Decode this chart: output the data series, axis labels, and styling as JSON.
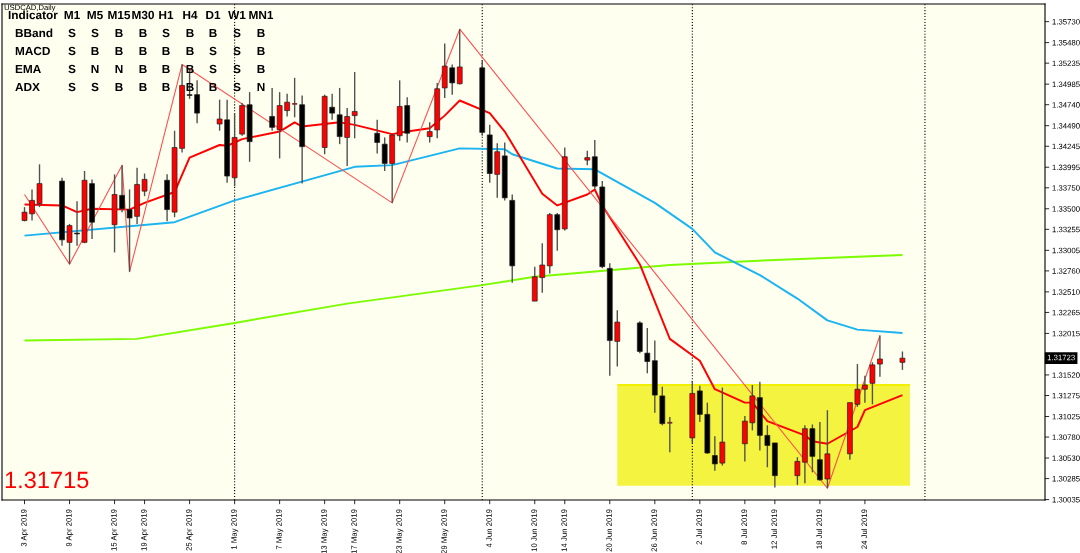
{
  "chart_data": {
    "type": "candlestick",
    "title": "USDCAD,Daily",
    "x": [
      "2019-04-03",
      "2019-04-04",
      "2019-04-05",
      "2019-04-08",
      "2019-04-09",
      "2019-04-10",
      "2019-04-11",
      "2019-04-12",
      "2019-04-15",
      "2019-04-16",
      "2019-04-17",
      "2019-04-18",
      "2019-04-19",
      "2019-04-22",
      "2019-04-23",
      "2019-04-24",
      "2019-04-25",
      "2019-04-26",
      "2019-04-29",
      "2019-04-30",
      "2019-05-01",
      "2019-05-02",
      "2019-05-03",
      "2019-05-06",
      "2019-05-07",
      "2019-05-08",
      "2019-05-09",
      "2019-05-10",
      "2019-05-13",
      "2019-05-14",
      "2019-05-15",
      "2019-05-16",
      "2019-05-17",
      "2019-05-20",
      "2019-05-21",
      "2019-05-22",
      "2019-05-23",
      "2019-05-24",
      "2019-05-27",
      "2019-05-28",
      "2019-05-29",
      "2019-05-30",
      "2019-05-31",
      "2019-06-03",
      "2019-06-04",
      "2019-06-05",
      "2019-06-06",
      "2019-06-07",
      "2019-06-10",
      "2019-06-11",
      "2019-06-12",
      "2019-06-13",
      "2019-06-14",
      "2019-06-17",
      "2019-06-18",
      "2019-06-19",
      "2019-06-20",
      "2019-06-21",
      "2019-06-24",
      "2019-06-25",
      "2019-06-26",
      "2019-06-27",
      "2019-06-28",
      "2019-07-01",
      "2019-07-02",
      "2019-07-03",
      "2019-07-04",
      "2019-07-05",
      "2019-07-08",
      "2019-07-09",
      "2019-07-10",
      "2019-07-11",
      "2019-07-12",
      "2019-07-15",
      "2019-07-16",
      "2019-07-17",
      "2019-07-18",
      "2019-07-19",
      "2019-07-22",
      "2019-07-23",
      "2019-07-24",
      "2019-07-25",
      "2019-07-26",
      "2019-07-29"
    ],
    "ohlc": [
      [
        1.3336,
        1.3352,
        1.3335,
        1.3346
      ],
      [
        1.3344,
        1.3373,
        1.3336,
        1.336
      ],
      [
        1.3356,
        1.3403,
        1.3352,
        1.338
      ],
      [
        1.3383,
        1.3387,
        1.3306,
        1.3313
      ],
      [
        1.331,
        1.3332,
        1.3284,
        1.333
      ],
      [
        1.3321,
        1.3359,
        1.3306,
        1.332
      ],
      [
        1.331,
        1.3395,
        1.3309,
        1.3384
      ],
      [
        1.338,
        1.3385,
        1.3314,
        1.3334
      ],
      [
        1.3331,
        1.3391,
        1.3298,
        1.3367
      ],
      [
        1.3366,
        1.3402,
        1.3346,
        1.335
      ],
      [
        1.3349,
        1.3373,
        1.3275,
        1.3339
      ],
      [
        1.3341,
        1.3399,
        1.3332,
        1.3379
      ],
      [
        1.3371,
        1.3392,
        1.3365,
        1.3385
      ],
      [
        1.3384,
        1.3391,
        1.3335,
        1.3349
      ],
      [
        1.3346,
        1.3443,
        1.334,
        1.3423
      ],
      [
        1.3422,
        1.3522,
        1.3417,
        1.3497
      ],
      [
        1.3486,
        1.3517,
        1.3481,
        1.3485
      ],
      [
        1.3486,
        1.3503,
        1.3452,
        1.3464
      ],
      [
        1.3451,
        1.348,
        1.3443,
        1.3457
      ],
      [
        1.3456,
        1.348,
        1.3381,
        1.3389
      ],
      [
        1.3387,
        1.3464,
        1.3377,
        1.3435
      ],
      [
        1.3439,
        1.3476,
        1.3437,
        1.3473
      ],
      [
        1.3474,
        1.3489,
        1.3406,
        1.343
      ],
      [
        1.346,
        1.3494,
        1.3443,
        1.3447
      ],
      [
        1.3444,
        1.3489,
        1.341,
        1.3473
      ],
      [
        1.3467,
        1.3487,
        1.346,
        1.3477
      ],
      [
        1.3475,
        1.3506,
        1.3459,
        1.3475
      ],
      [
        1.3474,
        1.3485,
        1.338,
        1.3424
      ],
      [
        1.3423,
        1.3486,
        1.3415,
        1.3484
      ],
      [
        1.3471,
        1.3487,
        1.3456,
        1.3464
      ],
      [
        1.3462,
        1.3494,
        1.3427,
        1.3436
      ],
      [
        1.3435,
        1.347,
        1.3401,
        1.346
      ],
      [
        1.3461,
        1.3513,
        1.3434,
        1.3466
      ],
      [
        1.344,
        1.3456,
        1.3416,
        1.3429
      ],
      [
        1.3427,
        1.3435,
        1.3395,
        1.3404
      ],
      [
        1.3404,
        1.3439,
        1.3357,
        1.3438
      ],
      [
        1.3437,
        1.3503,
        1.3431,
        1.3472
      ],
      [
        1.3473,
        1.3483,
        1.3429,
        1.344
      ],
      [
        1.3436,
        1.3453,
        1.3429,
        1.3442
      ],
      [
        1.3444,
        1.35,
        1.3434,
        1.3493
      ],
      [
        1.3494,
        1.3547,
        1.3482,
        1.352
      ],
      [
        1.3518,
        1.3522,
        1.3486,
        1.35
      ],
      [
        1.3499,
        1.3564,
        1.3498,
        1.3519
      ],
      [
        1.3518,
        1.3527,
        1.3437,
        1.3441
      ],
      [
        1.3438,
        1.345,
        1.3381,
        1.3392
      ],
      [
        1.3391,
        1.3428,
        1.3363,
        1.3418
      ],
      [
        1.3413,
        1.3429,
        1.336,
        1.3363
      ],
      [
        1.336,
        1.3367,
        1.3262,
        1.3282
      ],
      [
        1.324,
        1.3281,
        1.324,
        1.3269
      ],
      [
        1.3268,
        1.3309,
        1.325,
        1.3283
      ],
      [
        1.3282,
        1.3345,
        1.3273,
        1.3343
      ],
      [
        1.3343,
        1.3345,
        1.33,
        1.3325
      ],
      [
        1.3326,
        1.3423,
        1.3324,
        1.3412
      ],
      [
        1.3408,
        1.3419,
        1.3402,
        1.3411
      ],
      [
        1.3412,
        1.3432,
        1.3374,
        1.3377
      ],
      [
        1.3376,
        1.3383,
        1.3279,
        1.3281
      ],
      [
        1.3279,
        1.3285,
        1.3151,
        1.3193
      ],
      [
        1.3192,
        1.3229,
        1.3162,
        1.3215
      ],
      [
        1.3214,
        1.3216,
        1.3178,
        1.318
      ],
      [
        1.3178,
        1.3208,
        1.3154,
        1.3168
      ],
      [
        1.3169,
        1.3193,
        1.3107,
        1.3128
      ],
      [
        1.3127,
        1.3138,
        1.3092,
        1.3094
      ],
      [
        1.3095,
        1.3102,
        1.306,
        1.3095
      ],
      [
        1.3077,
        1.3145,
        1.3071,
        1.313
      ],
      [
        1.3133,
        1.3139,
        1.3096,
        1.3105
      ],
      [
        1.3105,
        1.3119,
        1.3058,
        1.3059
      ],
      [
        1.3056,
        1.3079,
        1.3038,
        1.3046
      ],
      [
        1.3047,
        1.3137,
        1.3044,
        1.3072
      ],
      [
        1.307,
        1.3103,
        1.3049,
        1.3097
      ],
      [
        1.3095,
        1.314,
        1.3086,
        1.3127
      ],
      [
        1.3125,
        1.3144,
        1.3062,
        1.308
      ],
      [
        1.308,
        1.3092,
        1.3042,
        1.3068
      ],
      [
        1.3071,
        1.3071,
        1.3018,
        1.3032
      ],
      [
        1.3032,
        1.3054,
        1.3021,
        1.3049
      ],
      [
        1.3048,
        1.3092,
        1.3023,
        1.3088
      ],
      [
        1.3088,
        1.3093,
        1.3036,
        1.3055
      ],
      [
        1.3051,
        1.3096,
        1.3026,
        1.3027
      ],
      [
        1.3028,
        1.311,
        1.3017,
        1.3058
      ],
      [
        1.3058,
        1.3119,
        1.3051,
        1.3119
      ],
      [
        1.3117,
        1.3165,
        1.3114,
        1.3135
      ],
      [
        1.3135,
        1.3151,
        1.3119,
        1.314
      ],
      [
        1.3142,
        1.3167,
        1.3117,
        1.3164
      ],
      [
        1.3165,
        1.3199,
        1.315,
        1.3171
      ],
      [
        1.3167,
        1.318,
        1.3158,
        1.3172
      ]
    ],
    "series": [
      {
        "type": "line",
        "color": "#f0f000",
        "x": [
          "2019-06-21",
          "2019-07-30"
        ],
        "values": [
          1.314,
          1.314
        ],
        "lower": [
          1.302,
          1.302
        ],
        "upper": [
          1.314,
          1.314
        ]
      },
      {
        "type": "line",
        "color": "#7cfc00",
        "x": [
          "2019-04-03",
          "2019-04-18",
          "2019-05-01",
          "2019-05-16",
          "2019-06-03",
          "2019-06-10",
          "2019-06-28",
          "2019-07-12",
          "2019-07-29"
        ],
        "values": [
          1.3193,
          1.3195,
          1.3214,
          1.3237,
          1.3259,
          1.3269,
          1.3283,
          1.3289,
          1.3295
        ]
      },
      {
        "type": "line",
        "color": "#1ab4f0",
        "x": [
          "2019-04-03",
          "2019-04-23",
          "2019-05-01",
          "2019-05-17",
          "2019-05-22",
          "2019-05-31",
          "2019-06-06",
          "2019-06-07",
          "2019-06-13",
          "2019-06-18",
          "2019-06-26",
          "2019-07-01",
          "2019-07-04",
          "2019-07-10",
          "2019-07-15",
          "2019-07-19",
          "2019-07-23",
          "2019-07-29"
        ],
        "values": [
          1.3318,
          1.3334,
          1.336,
          1.34,
          1.3402,
          1.3422,
          1.3421,
          1.3415,
          1.3398,
          1.3397,
          1.3357,
          1.3326,
          1.3298,
          1.3271,
          1.3243,
          1.3217,
          1.3206,
          1.3202
        ]
      },
      {
        "type": "line",
        "color": "#ff0000",
        "x": [
          "2019-04-03",
          "2019-04-08",
          "2019-04-10",
          "2019-04-12",
          "2019-04-17",
          "2019-04-19",
          "2019-04-23",
          "2019-04-25",
          "2019-04-29",
          "2019-04-30",
          "2019-05-02",
          "2019-05-07",
          "2019-05-09",
          "2019-05-10",
          "2019-05-15",
          "2019-05-17",
          "2019-05-22",
          "2019-05-24",
          "2019-05-27",
          "2019-05-29",
          "2019-05-31",
          "2019-06-04",
          "2019-06-06",
          "2019-06-11",
          "2019-06-13",
          "2019-06-17",
          "2019-06-18",
          "2019-06-19",
          "2019-06-24",
          "2019-06-28",
          "2019-07-02",
          "2019-07-04",
          "2019-07-08",
          "2019-07-09",
          "2019-07-11",
          "2019-07-16",
          "2019-07-17",
          "2019-07-19",
          "2019-07-23",
          "2019-07-24",
          "2019-07-29"
        ],
        "values": [
          1.3355,
          1.3354,
          1.3346,
          1.335,
          1.3349,
          1.3357,
          1.337,
          1.3411,
          1.3426,
          1.3425,
          1.3433,
          1.3442,
          1.3453,
          1.3448,
          1.3453,
          1.345,
          1.3439,
          1.3442,
          1.3446,
          1.3461,
          1.3479,
          1.3464,
          1.3442,
          1.3368,
          1.3354,
          1.3367,
          1.3373,
          1.3354,
          1.3284,
          1.3195,
          1.3169,
          1.3135,
          1.3119,
          1.3119,
          1.3097,
          1.308,
          1.3073,
          1.307,
          1.309,
          1.311,
          1.3128
        ]
      },
      {
        "type": "line",
        "color": "#ff5050",
        "x": [
          "2019-04-03",
          "2019-04-09",
          "2019-04-16",
          "2019-04-17",
          "2019-04-24",
          "2019-05-22",
          "2019-05-31",
          "2019-07-19",
          "2019-07-26"
        ],
        "values": [
          1.3367,
          1.3284,
          1.3402,
          1.3275,
          1.3522,
          1.3357,
          1.3564,
          1.3017,
          1.3199
        ]
      }
    ],
    "xlim": [
      "2019-03-31",
      "2019-08-17"
    ],
    "xticks": [
      {
        "value": "2019-04-03",
        "label": "3 Apr 2019"
      },
      {
        "value": "2019-04-09",
        "label": "9 Apr 2019"
      },
      {
        "value": "2019-04-15",
        "label": "15 Apr 2019"
      },
      {
        "value": "2019-04-19",
        "label": "19 Apr 2019"
      },
      {
        "value": "2019-04-25",
        "label": "25 Apr 2019"
      },
      {
        "value": "2019-05-01",
        "label": "1 May 2019"
      },
      {
        "value": "2019-05-07",
        "label": "7 May 2019"
      },
      {
        "value": "2019-05-13",
        "label": "13 May 2019"
      },
      {
        "value": "2019-05-17",
        "label": "17 May 2019"
      },
      {
        "value": "2019-05-23",
        "label": "23 May 2019"
      },
      {
        "value": "2019-05-29",
        "label": "29 May 2019"
      },
      {
        "value": "2019-06-04",
        "label": "4 Jun 2019"
      },
      {
        "value": "2019-06-10",
        "label": "10 Jun 2019"
      },
      {
        "value": "2019-06-14",
        "label": "14 Jun 2019"
      },
      {
        "value": "2019-06-20",
        "label": "20 Jun 2019"
      },
      {
        "value": "2019-06-26",
        "label": "26 Jun 2019"
      },
      {
        "value": "2019-07-02",
        "label": "2 Jul 2019"
      },
      {
        "value": "2019-07-08",
        "label": "8 Jul 2019"
      },
      {
        "value": "2019-07-12",
        "label": "12 Jul 2019"
      },
      {
        "value": "2019-07-18",
        "label": "18 Jul 2019"
      },
      {
        "value": "2019-07-24",
        "label": "24 Jul 2019"
      }
    ],
    "ylim": [
      1.3003,
      1.3594
    ],
    "yticks": [
      {
        "value": 1.3573,
        "label": "1.35730"
      },
      {
        "value": 1.3548,
        "label": "1.35480"
      },
      1.35235,
      1.34985,
      {
        "value": 1.3474,
        "label": "1.34740"
      },
      {
        "value": 1.3449,
        "label": "1.34490"
      },
      1.34245,
      1.33995,
      {
        "value": 1.3375,
        "label": "1.33750"
      },
      {
        "value": 1.335,
        "label": "1.33500"
      },
      1.33255,
      1.33005,
      {
        "value": 1.3276,
        "label": "1.32760"
      },
      {
        "value": 1.3251,
        "label": "1.32510"
      },
      1.32265,
      1.32015,
      {
        "value": 1.3177,
        "label": null
      },
      {
        "value": 1.3152,
        "label": "1.31520"
      },
      1.31275,
      1.31025,
      {
        "value": 1.3078,
        "label": "1.30780"
      },
      {
        "value": 1.3053,
        "label": "1.30530"
      },
      1.30285,
      1.30035
    ],
    "ref_lines": [
      {
        "axis": "x",
        "value": "2019-05-01",
        "color": "#000000",
        "line_style": "dotted"
      },
      {
        "axis": "x",
        "value": "2019-06-03",
        "color": "#000000",
        "line_style": "dotted"
      },
      {
        "axis": "x",
        "value": "2019-07-01",
        "color": "#000000",
        "line_style": "dotted"
      },
      {
        "axis": "x",
        "value": "2019-08-01",
        "color": "#000000",
        "line_style": "dotted"
      }
    ],
    "annotations": [
      "Indicator",
      "M1",
      "M5",
      "M15",
      "M30",
      "H1",
      "H4",
      "D1",
      "W1",
      "MN1",
      "BBand",
      "S",
      "S",
      "B",
      "B",
      "S",
      "B",
      "B",
      "S",
      "B",
      "MACD",
      "S",
      "B",
      "B",
      "B",
      "B",
      "B",
      "S",
      "S",
      "B",
      "EMA",
      "S",
      "N",
      "N",
      "B",
      "B",
      "B",
      "S",
      "S",
      "B",
      "ADX",
      "S",
      "S",
      "B",
      "B",
      "B",
      "B",
      "B",
      "S",
      "N",
      "1.31715",
      "1.31723"
    ]
  }
}
